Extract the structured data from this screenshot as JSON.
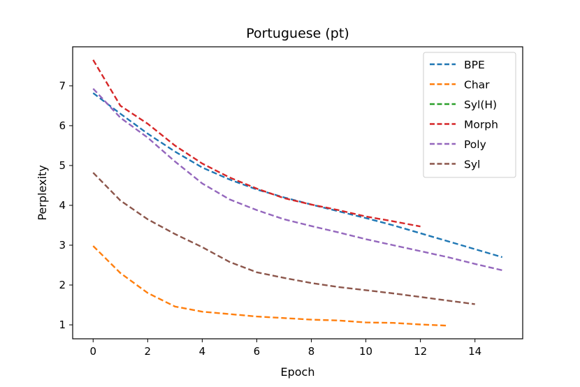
{
  "chart_data": {
    "type": "line",
    "title": "Portuguese (pt)",
    "xlabel": "Epoch",
    "ylabel": "Perplexity",
    "xlim": [
      -0.75,
      15.75
    ],
    "ylim": [
      0.65,
      7.98
    ],
    "xticks": [
      0,
      2,
      4,
      6,
      8,
      10,
      12,
      14
    ],
    "yticks": [
      1,
      2,
      3,
      4,
      5,
      6,
      7
    ],
    "grid": false,
    "legend_position": "top-right",
    "line_style": "dashed",
    "series": [
      {
        "name": "BPE",
        "color": "#1f77b4",
        "x": [
          0,
          1,
          2,
          3,
          4,
          5,
          6,
          7,
          8,
          9,
          10,
          11,
          12,
          13,
          14,
          15
        ],
        "y": [
          6.82,
          6.3,
          5.8,
          5.35,
          4.95,
          4.65,
          4.4,
          4.2,
          4.02,
          3.85,
          3.68,
          3.5,
          3.3,
          3.1,
          2.9,
          2.7
        ]
      },
      {
        "name": "Char",
        "color": "#ff7f0e",
        "x": [
          0,
          1,
          2,
          3,
          4,
          5,
          6,
          7,
          8,
          9,
          10,
          11,
          12,
          13
        ],
        "y": [
          2.98,
          2.3,
          1.8,
          1.46,
          1.33,
          1.27,
          1.21,
          1.17,
          1.13,
          1.11,
          1.06,
          1.05,
          1.01,
          0.98
        ]
      },
      {
        "name": "Syl(H)",
        "color": "#2ca02c",
        "x": [],
        "y": []
      },
      {
        "name": "Morph",
        "color": "#d62728",
        "x": [
          0,
          1,
          2,
          3,
          4,
          5,
          6,
          7,
          8,
          9,
          10,
          11,
          12
        ],
        "y": [
          7.65,
          6.5,
          6.05,
          5.5,
          5.05,
          4.7,
          4.42,
          4.18,
          4.02,
          3.88,
          3.72,
          3.6,
          3.47
        ]
      },
      {
        "name": "Poly",
        "color": "#9467bd",
        "x": [
          0,
          1,
          2,
          3,
          4,
          5,
          6,
          7,
          8,
          9,
          10,
          11,
          12,
          13,
          14,
          15
        ],
        "y": [
          6.93,
          6.2,
          5.7,
          5.1,
          4.55,
          4.15,
          3.88,
          3.65,
          3.48,
          3.32,
          3.15,
          3.0,
          2.85,
          2.7,
          2.53,
          2.37
        ]
      },
      {
        "name": "Syl",
        "color": "#8c564b",
        "x": [
          0,
          1,
          2,
          3,
          4,
          5,
          6,
          7,
          8,
          9,
          10,
          11,
          12,
          13,
          14
        ],
        "y": [
          4.82,
          4.12,
          3.65,
          3.28,
          2.95,
          2.58,
          2.32,
          2.18,
          2.05,
          1.95,
          1.87,
          1.79,
          1.7,
          1.61,
          1.52
        ]
      }
    ]
  }
}
